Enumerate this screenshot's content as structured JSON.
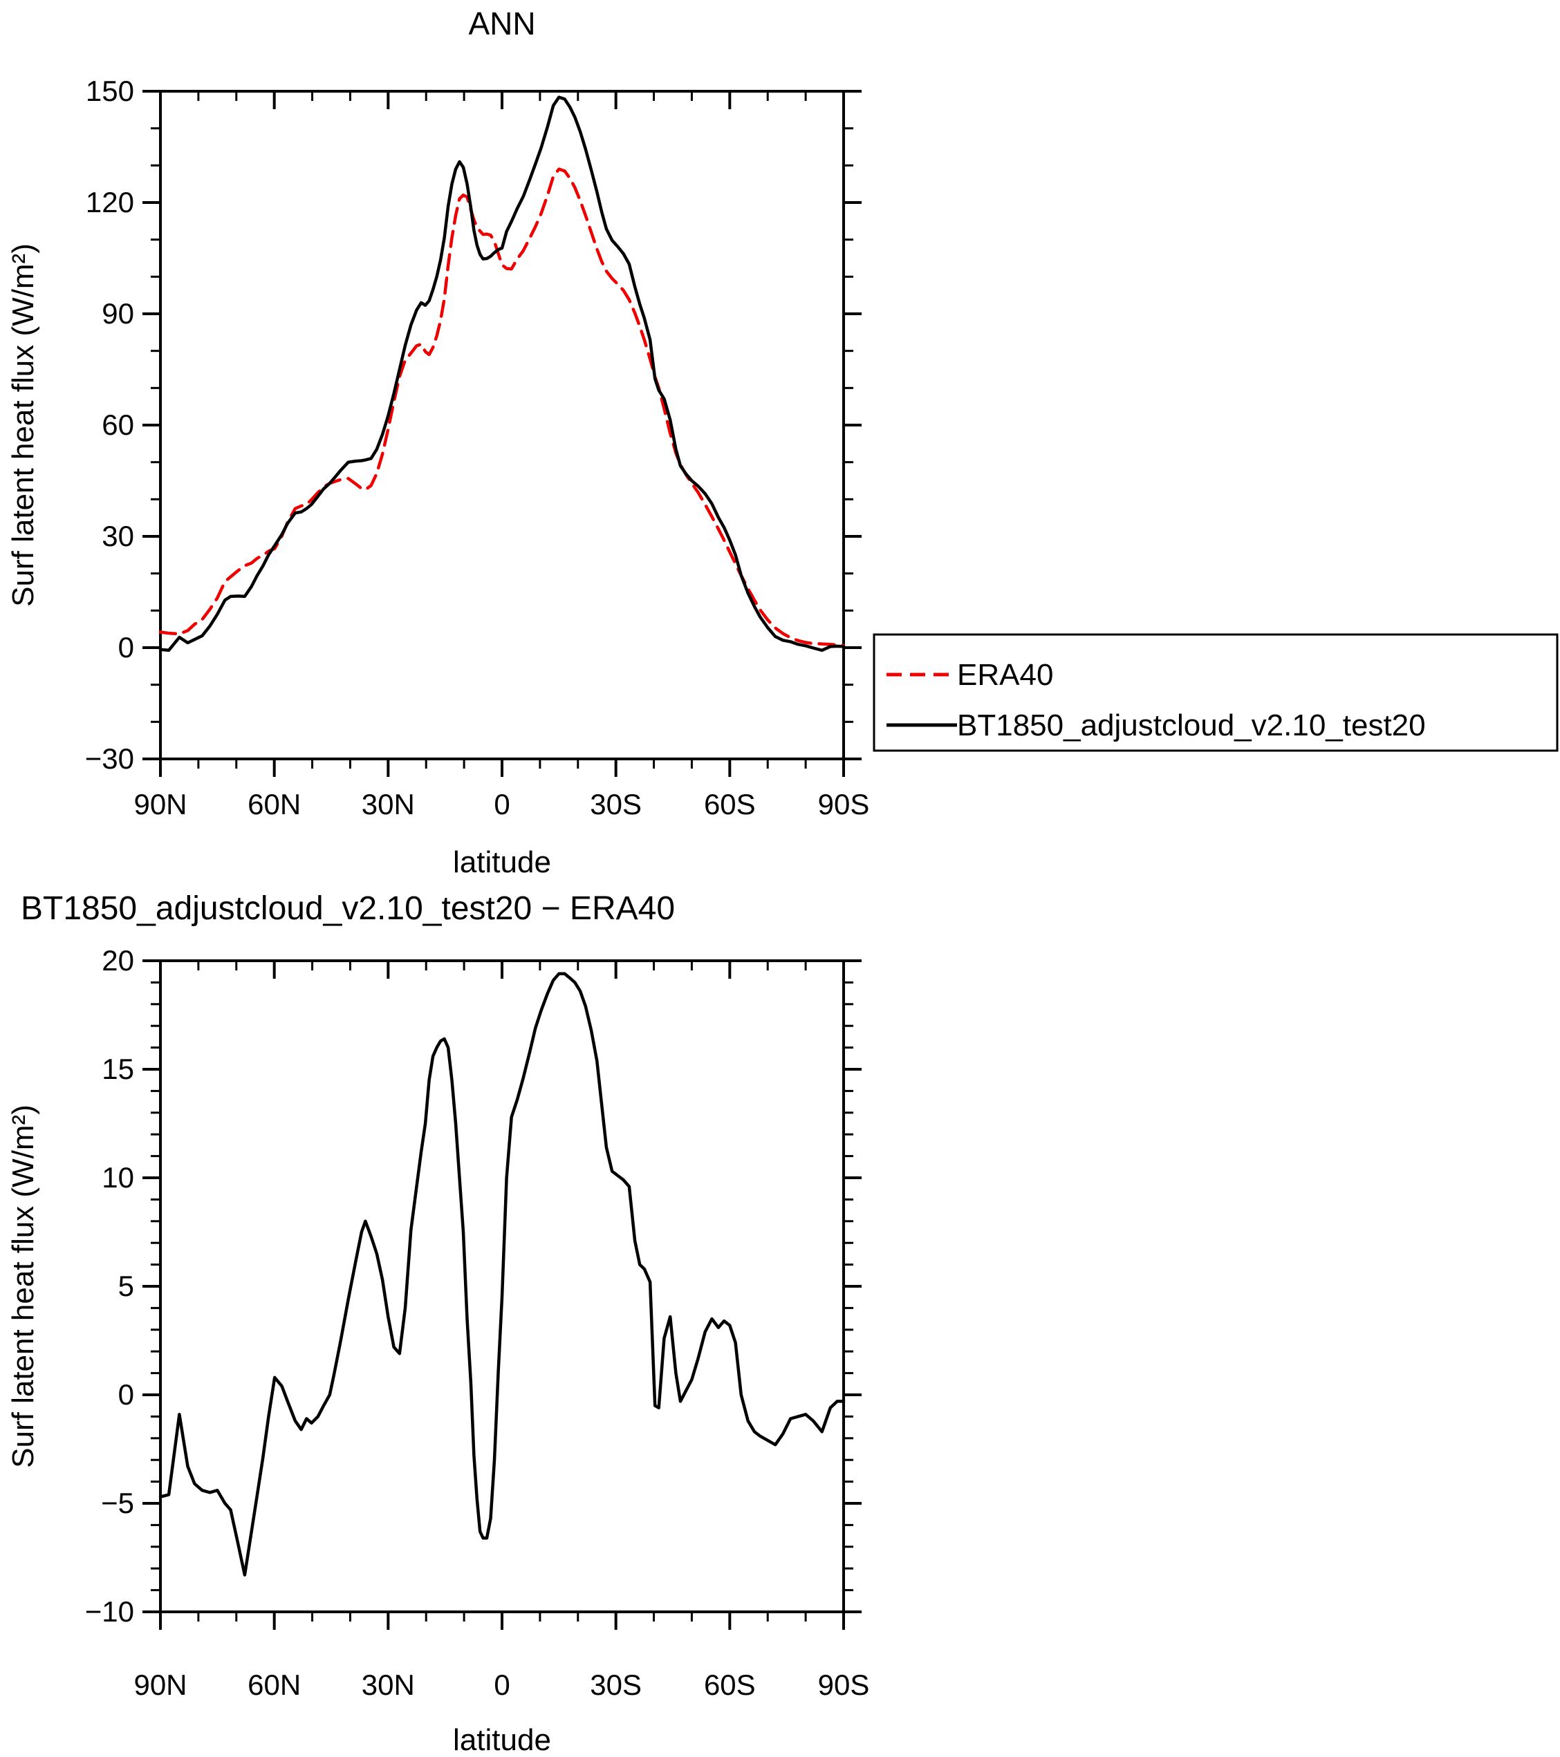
{
  "page": {
    "background": "#ffffff",
    "figure_type": "two-panel zonal mean line plot"
  },
  "panel1": {
    "title": "ANN",
    "ylabel": "Surf latent heat flux (W/m²)",
    "xlabel": "latitude",
    "y_tick_labels": [
      "150",
      "120",
      "90",
      "60",
      "30",
      "0",
      "−30"
    ],
    "x_tick_labels": [
      "90N",
      "60N",
      "30N",
      "0",
      "30S",
      "60S",
      "90S"
    ]
  },
  "panel2": {
    "title": "BT1850_adjustcloud_v2.10_test20 − ERA40",
    "ylabel": "Surf latent heat flux (W/m²)",
    "xlabel": "latitude",
    "y_tick_labels": [
      "20",
      "15",
      "10",
      "5",
      "0",
      "−5",
      "−10"
    ],
    "x_tick_labels": [
      "90N",
      "60N",
      "30N",
      "0",
      "30S",
      "60S",
      "90S"
    ]
  },
  "legend": {
    "entries": [
      {
        "label": "ERA40",
        "color": "#ee0000",
        "style": "dashed"
      },
      {
        "label": "BT1850_adjustcloud_v2.10_test20",
        "color": "#000000",
        "style": "solid"
      }
    ]
  },
  "colors": {
    "era40": "#ee0000",
    "model": "#000000",
    "frame": "#000000"
  },
  "chart_data": [
    {
      "type": "line",
      "panel": "top",
      "title": "ANN",
      "xlabel": "latitude",
      "ylabel": "Surf latent heat flux (W/m2)",
      "xlim_deg_lat": [
        90,
        -90
      ],
      "ylim": [
        -30,
        150
      ],
      "y_major_ticks": [
        150,
        120,
        90,
        60,
        30,
        0,
        -30
      ],
      "y_minor_step": 10,
      "x_major_ticks_deg": [
        90,
        60,
        30,
        0,
        -30,
        -60,
        -90
      ],
      "x_minor_step_deg": 10,
      "legend_position": "outside-right-below",
      "grid": false,
      "x": [
        90,
        87.8,
        85,
        82.8,
        81,
        79,
        77,
        75,
        73,
        71.5,
        69.5,
        67.8,
        66,
        64.5,
        63,
        61.5,
        59.9,
        58,
        56.5,
        54.5,
        52.9,
        51.5,
        50.2,
        48.5,
        47,
        45.4,
        44.3,
        42.5,
        40.5,
        38.5,
        37,
        36,
        34.5,
        33,
        31.5,
        30,
        28.5,
        27,
        25.5,
        24,
        22.5,
        21.3,
        20.2,
        19.2,
        18.2,
        17.2,
        16.2,
        15.2,
        14.2,
        13.2,
        12.2,
        11.2,
        10.2,
        9.2,
        8.2,
        7.4,
        6.6,
        5.8,
        5,
        4,
        3,
        2,
        1,
        0.3,
        0,
        -1.2,
        -2.5,
        -4,
        -5.6,
        -7.3,
        -8.8,
        -10.3,
        -12,
        -13.5,
        -15,
        -16.5,
        -17.9,
        -19.2,
        -20.6,
        -22,
        -23.5,
        -25,
        -26.3,
        -27.5,
        -29,
        -30.5,
        -32,
        -33.5,
        -35,
        -36.3,
        -37.5,
        -39,
        -40.3,
        -41.3,
        -42.7,
        -44.3,
        -45.8,
        -47,
        -48.5,
        -50,
        -51.7,
        -53.5,
        -55.3,
        -57,
        -58.5,
        -60,
        -61.5,
        -63,
        -64.8,
        -66.5,
        -68,
        -70,
        -72,
        -74,
        -76,
        -78,
        -80,
        -82,
        -84.3,
        -86.5,
        -88.3,
        -90
      ],
      "series": [
        {
          "name": "ERA40",
          "values": [
            4.2,
            3.9,
            3.7,
            4.6,
            6.3,
            7.6,
            10.3,
            13.4,
            17.8,
            19.1,
            20.8,
            22.1,
            22.8,
            24.1,
            24.9,
            26.0,
            26.7,
            30.1,
            33.8,
            37.5,
            38.2,
            38.6,
            39.9,
            41.8,
            43.3,
            44.3,
            44.7,
            45.3,
            45.6,
            44.1,
            42.9,
            42.6,
            43.7,
            47.0,
            52.2,
            58.9,
            66.3,
            73.1,
            77.5,
            79.4,
            81.4,
            81.8,
            79.8,
            79.0,
            80.9,
            84.0,
            88.2,
            94.1,
            103.0,
            110.5,
            116.5,
            121.0,
            122.0,
            121.5,
            118.0,
            115.3,
            113.3,
            112.3,
            111.4,
            111.5,
            111.2,
            109.5,
            106.3,
            104.1,
            103.2,
            102.2,
            102.1,
            104.8,
            107.0,
            110.4,
            113.5,
            117.0,
            122.0,
            127.0,
            129.0,
            128.5,
            126.5,
            124.0,
            120.5,
            116.5,
            112.0,
            107.5,
            104.0,
            101.5,
            99.5,
            98.0,
            96.3,
            93.8,
            90.2,
            86.6,
            83.0,
            77.8,
            73.0,
            70.0,
            64.5,
            57.8,
            52.5,
            49.3,
            46.6,
            44.3,
            41.8,
            38.6,
            35.3,
            32.0,
            29.0,
            25.8,
            22.6,
            19.5,
            15.9,
            12.8,
            10.2,
            7.5,
            5.3,
            3.8,
            2.7,
            1.9,
            1.4,
            1.1,
            1.0,
            0.9,
            0.7,
            0.6
          ]
        },
        {
          "name": "BT1850_adjustcloud_v2.10_test20",
          "values": [
            -0.5,
            -0.7,
            2.8,
            1.3,
            2.2,
            3.2,
            5.8,
            9.0,
            12.8,
            13.8,
            13.9,
            13.8,
            16.5,
            19.5,
            22.0,
            25.0,
            27.5,
            30.5,
            33.5,
            36.3,
            36.6,
            37.5,
            38.6,
            40.8,
            42.8,
            44.3,
            45.6,
            47.8,
            50.0,
            50.3,
            50.4,
            50.6,
            51.0,
            53.5,
            57.5,
            62.5,
            68.5,
            75.0,
            81.5,
            87.0,
            91.0,
            93.0,
            92.3,
            93.5,
            96.5,
            100.0,
            104.5,
            110.5,
            119.0,
            125.0,
            129.0,
            131.0,
            129.5,
            125.0,
            118.5,
            112.5,
            108.5,
            106.0,
            104.8,
            104.9,
            105.5,
            106.5,
            107.3,
            107.6,
            107.7,
            112.2,
            114.9,
            118.4,
            121.6,
            126.2,
            130.4,
            134.7,
            140.5,
            146.1,
            148.4,
            147.9,
            145.7,
            143.0,
            139.1,
            134.4,
            128.8,
            122.9,
            117.3,
            112.9,
            109.8,
            108.1,
            106.2,
            103.4,
            97.3,
            92.6,
            88.8,
            83.0,
            72.5,
            69.4,
            67.1,
            61.4,
            53.5,
            49.0,
            46.8,
            45.0,
            43.5,
            41.5,
            38.8,
            35.1,
            32.4,
            29.0,
            25.0,
            19.5,
            14.7,
            11.1,
            8.3,
            5.4,
            3.0,
            2.0,
            1.6,
            0.9,
            0.5,
            -0.1,
            -0.7,
            0.3,
            0.4,
            0.3
          ]
        }
      ]
    },
    {
      "type": "line",
      "panel": "bottom",
      "title": "BT1850_adjustcloud_v2.10_test20 - ERA40",
      "xlabel": "latitude",
      "ylabel": "Surf latent heat flux (W/m2)",
      "xlim_deg_lat": [
        90,
        -90
      ],
      "ylim": [
        -10,
        20
      ],
      "y_major_ticks": [
        20,
        15,
        10,
        5,
        0,
        -5,
        -10
      ],
      "y_minor_step": 1,
      "x_major_ticks_deg": [
        90,
        60,
        30,
        0,
        -30,
        -60,
        -90
      ],
      "x_minor_step_deg": 10,
      "grid": false,
      "x": [
        90,
        87.8,
        85,
        82.8,
        81,
        79,
        77,
        75,
        73,
        71.5,
        69.5,
        67.8,
        66,
        64.5,
        63,
        61.5,
        59.9,
        58,
        56.5,
        54.5,
        52.9,
        51.5,
        50.2,
        48.5,
        47,
        45.4,
        44.3,
        42.5,
        40.5,
        38.5,
        37,
        36,
        34.5,
        33,
        31.5,
        30,
        28.5,
        27,
        25.5,
        24,
        22.5,
        21.3,
        20.2,
        19.2,
        18.2,
        17.2,
        16.2,
        15.2,
        14.2,
        13.2,
        12.2,
        11.2,
        10.2,
        9.2,
        8.2,
        7.4,
        6.6,
        5.8,
        5,
        4,
        3,
        2,
        1,
        0.3,
        0,
        -1.2,
        -2.5,
        -4,
        -5.6,
        -7.3,
        -8.8,
        -10.3,
        -12,
        -13.5,
        -15,
        -16.5,
        -17.9,
        -19.2,
        -20.6,
        -22,
        -23.5,
        -25,
        -26.3,
        -27.5,
        -29,
        -30.5,
        -32,
        -33.5,
        -35,
        -36.3,
        -37.5,
        -39,
        -40.3,
        -41.3,
        -42.7,
        -44.3,
        -45.8,
        -47,
        -48.5,
        -50,
        -51.7,
        -53.5,
        -55.3,
        -57,
        -58.5,
        -60,
        -61.5,
        -63,
        -64.8,
        -66.5,
        -68,
        -70,
        -72,
        -74,
        -76,
        -78,
        -80,
        -82,
        -84.3,
        -86.5,
        -88.3,
        -90
      ],
      "series": [
        {
          "name": "BT1850_adjustcloud_v2.10_test20 - ERA40",
          "values": [
            -4.7,
            -4.6,
            -0.9,
            -3.3,
            -4.1,
            -4.4,
            -4.5,
            -4.4,
            -5.0,
            -5.3,
            -6.9,
            -8.3,
            -6.3,
            -4.6,
            -2.9,
            -1.0,
            0.8,
            0.4,
            -0.3,
            -1.2,
            -1.6,
            -1.1,
            -1.3,
            -1.0,
            -0.5,
            0.0,
            0.9,
            2.5,
            4.4,
            6.2,
            7.5,
            8.0,
            7.3,
            6.5,
            5.3,
            3.6,
            2.2,
            1.9,
            4.0,
            7.6,
            9.6,
            11.2,
            12.5,
            14.5,
            15.6,
            16.0,
            16.3,
            16.4,
            16.0,
            14.5,
            12.5,
            10.0,
            7.5,
            3.5,
            0.5,
            -2.8,
            -4.8,
            -6.3,
            -6.6,
            -6.6,
            -5.7,
            -3.0,
            1.0,
            3.5,
            4.5,
            10.0,
            12.8,
            13.6,
            14.6,
            15.8,
            16.9,
            17.7,
            18.5,
            19.1,
            19.4,
            19.4,
            19.2,
            19.0,
            18.6,
            17.9,
            16.8,
            15.4,
            13.3,
            11.4,
            10.3,
            10.1,
            9.9,
            9.6,
            7.1,
            6.0,
            5.8,
            5.2,
            -0.5,
            -0.6,
            2.6,
            3.6,
            1.0,
            -0.3,
            0.2,
            0.7,
            1.7,
            2.9,
            3.5,
            3.1,
            3.4,
            3.2,
            2.4,
            0.0,
            -1.2,
            -1.7,
            -1.9,
            -2.1,
            -2.3,
            -1.8,
            -1.1,
            -1.0,
            -0.9,
            -1.2,
            -1.7,
            -0.6,
            -0.3,
            -0.3
          ]
        }
      ]
    }
  ]
}
